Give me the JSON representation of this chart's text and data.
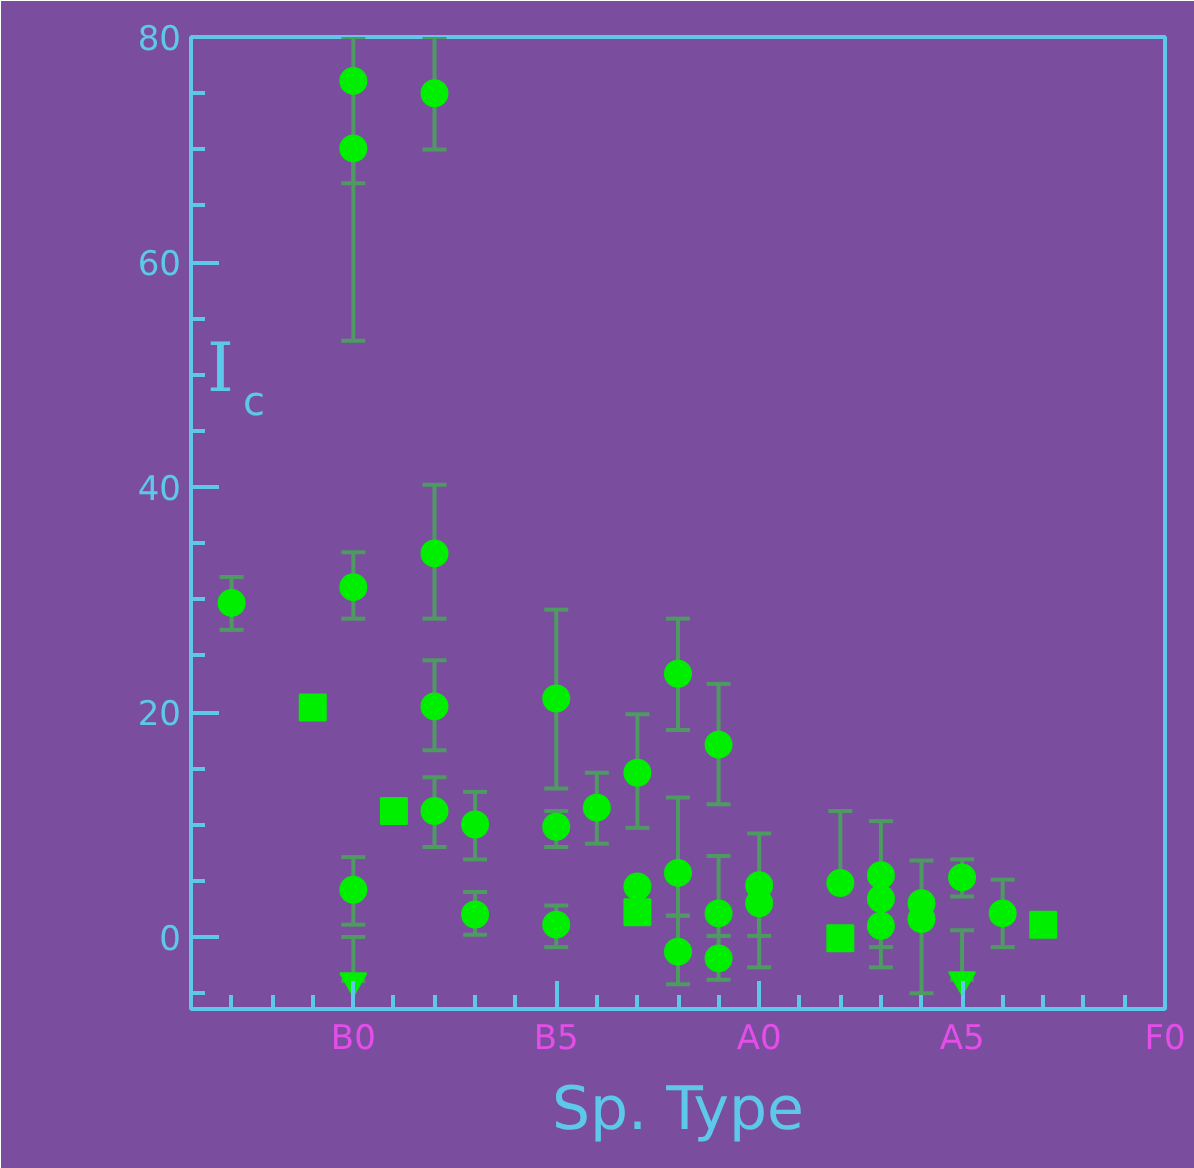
{
  "chart_data": {
    "type": "scatter",
    "xlabel": "Sp. Type",
    "ylabel": "I$_{c}$",
    "categories": [
      null,
      null,
      null,
      "B0",
      null,
      null,
      null,
      null,
      "B5",
      null,
      null,
      null,
      null,
      "A0",
      null,
      null,
      null,
      null,
      "A5",
      null,
      null,
      null,
      null,
      "F0"
    ],
    "ylim": [
      -6.4,
      80
    ],
    "yticks": [
      {
        "value": -5,
        "label": null
      },
      0,
      {
        "value": 5,
        "label": null
      },
      {
        "value": 10,
        "label": null
      },
      {
        "value": 15,
        "label": null
      },
      20,
      {
        "value": 25,
        "label": null
      },
      {
        "value": 30,
        "label": null
      },
      {
        "value": 35,
        "label": null
      },
      40,
      {
        "value": 45,
        "label": null
      },
      {
        "value": 50,
        "label": null
      },
      {
        "value": 55,
        "label": null
      },
      60,
      {
        "value": 65,
        "label": null
      },
      {
        "value": 70,
        "label": null
      },
      {
        "value": 75,
        "label": null
      },
      80
    ],
    "grid": false,
    "series": [
      {
        "marker": "circle",
        "color": "#00ee00",
        "values": [
          29.7,
          null,
          null,
          76.1,
          null,
          75.0,
          10.0,
          null,
          21.2,
          11.5,
          14.6,
          23.4,
          17.1,
          4.6,
          null,
          4.8,
          5.5,
          3.0,
          5.3,
          2.1,
          null,
          null,
          null,
          null
        ],
        "errors": [
          [
            27.3,
            32.0
          ],
          null,
          null,
          [
            67,
            80
          ],
          null,
          [
            70,
            80
          ],
          [
            6.9,
            12.9
          ],
          null,
          [
            13.2,
            29.1
          ],
          [
            8.3,
            14.6
          ],
          [
            9.7,
            19.8
          ],
          [
            18.4,
            28.3
          ],
          [
            11.8,
            22.5
          ],
          [
            0.1,
            9.2
          ],
          null,
          [
            4.8,
            11.2
          ],
          [
            5.5,
            10.3
          ],
          null,
          [
            3.6,
            6.9
          ],
          [
            -0.9,
            5.1
          ],
          null,
          null,
          null,
          null
        ]
      },
      {
        "marker": "circle",
        "color": "#00ee00",
        "values": [
          null,
          null,
          null,
          70.1,
          null,
          34.1,
          2.0,
          null,
          9.8,
          null,
          4.5,
          5.7,
          2.1,
          3.0,
          null,
          null,
          3.4,
          1.6,
          null,
          null,
          null,
          null,
          null,
          null
        ],
        "errors": [
          null,
          null,
          null,
          [
            53,
            70.1
          ],
          null,
          [
            28.3,
            40.2
          ],
          [
            0.2,
            4.0
          ],
          null,
          [
            8.0,
            11.2
          ],
          null,
          null,
          [
            1.9,
            12.4
          ],
          [
            0.1,
            7.2
          ],
          [
            -2.7,
            3.0
          ],
          null,
          null,
          [
            -0.9,
            3.4
          ],
          [
            -5.0,
            6.8
          ],
          null,
          null,
          null,
          null,
          null,
          null
        ]
      },
      {
        "marker": "circle",
        "color": "#00ee00",
        "values": [
          null,
          null,
          null,
          31.1,
          null,
          20.5,
          null,
          null,
          1.1,
          null,
          null,
          -1.3,
          -1.9,
          null,
          null,
          null,
          1.0,
          null,
          null,
          null,
          null,
          null,
          null,
          null
        ],
        "errors": [
          null,
          null,
          null,
          [
            28.3,
            34.2
          ],
          null,
          [
            16.6,
            24.6
          ],
          null,
          null,
          [
            -0.9,
            2.8
          ],
          null,
          null,
          [
            -4.2,
            1.9
          ],
          [
            -3.8,
            0.1
          ],
          null,
          null,
          null,
          [
            -2.7,
            1.0
          ],
          null,
          null,
          null,
          null,
          null,
          null,
          null
        ]
      },
      {
        "marker": "circle",
        "color": "#00ee00",
        "values": [
          null,
          null,
          null,
          4.2,
          null,
          11.2,
          null,
          null,
          null,
          null,
          null,
          null,
          null,
          null,
          null,
          null,
          null,
          null,
          null,
          null,
          null,
          null,
          null,
          null
        ],
        "errors": [
          null,
          null,
          null,
          [
            1.1,
            7.1
          ],
          null,
          [
            8.0,
            14.2
          ],
          null,
          null,
          null,
          null,
          null,
          null,
          null,
          null,
          null,
          null,
          null,
          null,
          null,
          null,
          null,
          null,
          null,
          null
        ]
      },
      {
        "marker": "square",
        "color": "#00ee00",
        "values": [
          null,
          null,
          20.4,
          null,
          11.2,
          null,
          null,
          null,
          null,
          null,
          2.2,
          null,
          null,
          null,
          null,
          -0.1,
          null,
          null,
          null,
          null,
          1.1,
          null,
          null,
          null
        ],
        "errors": [
          null,
          null,
          null,
          null,
          null,
          null,
          null,
          null,
          null,
          null,
          null,
          null,
          null,
          null,
          null,
          null,
          null,
          null,
          null,
          null,
          null,
          null,
          null,
          null
        ]
      },
      {
        "marker": "triangle",
        "color": "#00ee00",
        "values": [
          null,
          null,
          null,
          -3.9,
          null,
          null,
          null,
          null,
          null,
          null,
          null,
          null,
          null,
          null,
          null,
          null,
          null,
          null,
          -3.8,
          null,
          null,
          null,
          null,
          null
        ],
        "errors": [
          null,
          null,
          null,
          [
            -3.9,
            0
          ],
          null,
          null,
          null,
          null,
          null,
          null,
          null,
          null,
          null,
          null,
          null,
          null,
          null,
          null,
          [
            -3.8,
            0.6
          ],
          null,
          null,
          null,
          null,
          null
        ]
      }
    ]
  }
}
